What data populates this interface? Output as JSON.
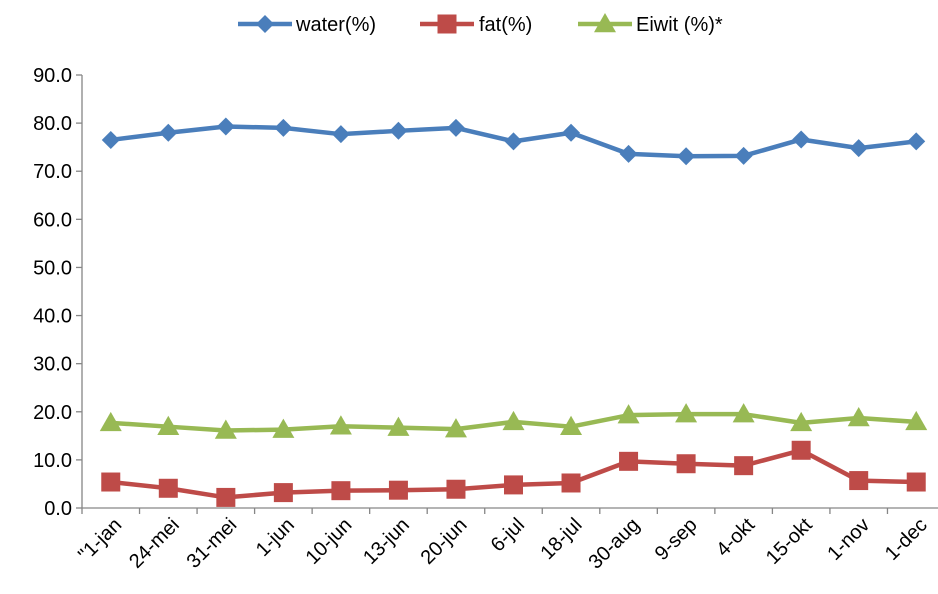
{
  "chart_data": {
    "type": "line",
    "categories": [
      "\"1-jan",
      "24-mei",
      "31-mei",
      "1-jun",
      "10-jun",
      "13-jun",
      "20-jun",
      "6-jul",
      "18-jul",
      "30-aug",
      "9-sep",
      "4-okt",
      "15-okt",
      "1-nov",
      "1-dec"
    ],
    "ylim": [
      0,
      90
    ],
    "yticks": [
      "0.0",
      "10.0",
      "20.0",
      "30.0",
      "40.0",
      "50.0",
      "60.0",
      "70.0",
      "80.0",
      "90.0"
    ],
    "grid": false,
    "legend_position": "top",
    "series": [
      {
        "name": "water(%)",
        "color": "#4a7ebb",
        "marker": "diamond",
        "values": [
          76.5,
          78.0,
          79.3,
          79.0,
          77.7,
          78.4,
          79.0,
          76.2,
          78.0,
          73.6,
          73.1,
          73.2,
          76.6,
          74.8,
          76.2
        ]
      },
      {
        "name": "fat(%)",
        "color": "#be4b48",
        "marker": "square",
        "values": [
          5.4,
          4.1,
          2.2,
          3.2,
          3.6,
          3.7,
          3.9,
          4.8,
          5.2,
          9.7,
          9.2,
          8.8,
          12.0,
          5.7,
          5.4
        ]
      },
      {
        "name": "Eiwit (%)*",
        "color": "#98b954",
        "marker": "triangle",
        "values": [
          17.7,
          16.9,
          16.1,
          16.3,
          17.0,
          16.7,
          16.4,
          17.9,
          16.9,
          19.3,
          19.5,
          19.5,
          17.7,
          18.7,
          17.9
        ]
      }
    ]
  }
}
